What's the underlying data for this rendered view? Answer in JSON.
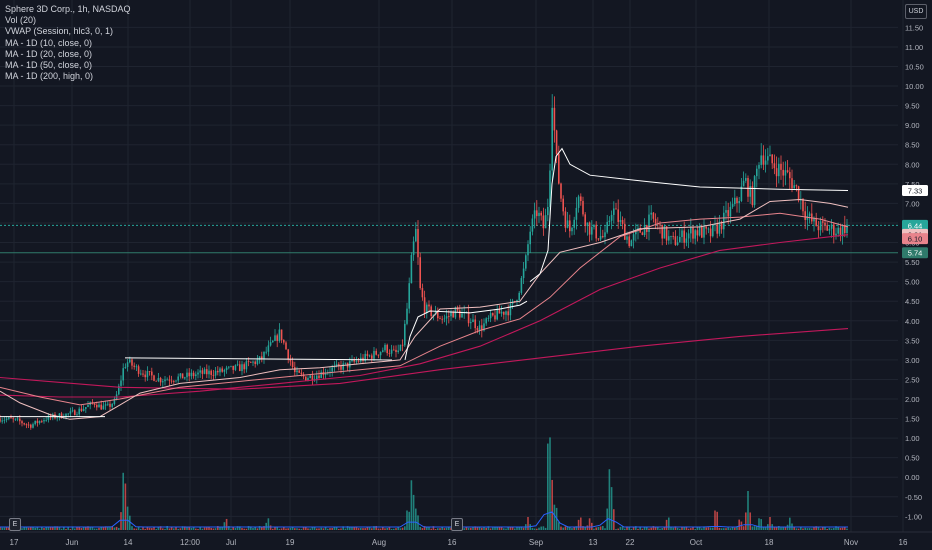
{
  "legend": {
    "symbol": "Sphere 3D Corp., 1h, NASDAQ",
    "vol": "Vol (20)",
    "vwap": "VWAP (Session, hlc3, 0, 1)",
    "ma10": "MA - 1D (10, close, 0)",
    "ma20": "MA - 1D (20, close, 0)",
    "ma50": "MA - 1D (50, close, 0)",
    "ma200": "MA - 1D (200, high, 0)"
  },
  "currency_label": "USD",
  "pane_buttons": [
    "E",
    "E"
  ],
  "colors": {
    "background": "#131722",
    "grid": "#1f2430",
    "up": "#26a69a",
    "down": "#ef5350",
    "vwap": "#ffffff",
    "ma_light": "#f0c0c0",
    "ma_mid": "#e8848c",
    "ma_dark": "#c2185b",
    "volume_up": "#26a69a",
    "volume_down": "#ef5350",
    "volume_ma": "#2962ff",
    "hline": "#2f7a6b"
  },
  "chart_data": {
    "type": "candlestick",
    "title": "Sphere 3D Corp., 1h, NASDAQ",
    "x_ticks": [
      "17",
      "Jun",
      "14",
      "12:00",
      "Jul",
      "19",
      "Aug",
      "16",
      "Sep",
      "13",
      "22",
      "Oct",
      "18",
      "Nov",
      "16"
    ],
    "y_ticks": [
      "-1.00",
      "-0.50",
      "0.00",
      "0.50",
      "1.00",
      "1.50",
      "2.00",
      "2.50",
      "3.00",
      "3.50",
      "4.00",
      "4.50",
      "5.00",
      "5.50",
      "6.00",
      "6.50",
      "7.00",
      "7.50",
      "8.00",
      "8.50",
      "9.00",
      "9.50",
      "10.00",
      "10.50",
      "11.00",
      "11.50"
    ],
    "ylim": [
      -1.4,
      12.2
    ],
    "grid": true,
    "scale_labels": [
      {
        "value": 7.33,
        "text": "7.33",
        "color": "#ffffff",
        "text_color": "#131722"
      },
      {
        "value": 6.44,
        "text": "6.44",
        "color": "#26a69a",
        "text_color": "#ffffff"
      },
      {
        "value": 6.21,
        "text": "6.21",
        "color": "#f0c0c0",
        "text_color": "#131722"
      },
      {
        "value": 6.1,
        "text": "6.10",
        "color": "#e8848c",
        "text_color": "#131722"
      },
      {
        "value": 5.74,
        "text": "5.74",
        "color": "#2f7a6b",
        "text_color": "#ffffff"
      }
    ],
    "horizontal_lines": [
      {
        "name": "last-price-line",
        "value": 6.44,
        "color": "#26a69a"
      },
      {
        "name": "level-line",
        "value": 5.74,
        "color": "#2f7a6b"
      }
    ],
    "price_path": [
      [
        0,
        1.5
      ],
      [
        10,
        1.48
      ],
      [
        20,
        1.42
      ],
      [
        30,
        1.32
      ],
      [
        35,
        1.38
      ],
      [
        45,
        1.5
      ],
      [
        55,
        1.55
      ],
      [
        70,
        1.62
      ],
      [
        80,
        1.72
      ],
      [
        90,
        1.85
      ],
      [
        95,
        1.9
      ],
      [
        100,
        1.8
      ],
      [
        108,
        1.8
      ],
      [
        115,
        1.95
      ],
      [
        120,
        2.4
      ],
      [
        124,
        2.85
      ],
      [
        128,
        2.95
      ],
      [
        135,
        2.8
      ],
      [
        145,
        2.65
      ],
      [
        160,
        2.5
      ],
      [
        180,
        2.55
      ],
      [
        200,
        2.65
      ],
      [
        220,
        2.7
      ],
      [
        240,
        2.8
      ],
      [
        260,
        3.0
      ],
      [
        272,
        3.4
      ],
      [
        280,
        3.7
      ],
      [
        287,
        3.2
      ],
      [
        295,
        2.65
      ],
      [
        305,
        2.55
      ],
      [
        315,
        2.6
      ],
      [
        330,
        2.75
      ],
      [
        345,
        2.85
      ],
      [
        360,
        3.0
      ],
      [
        375,
        3.15
      ],
      [
        385,
        3.3
      ],
      [
        395,
        3.15
      ],
      [
        402,
        3.3
      ],
      [
        408,
        4.5
      ],
      [
        412,
        5.7
      ],
      [
        416,
        6.3
      ],
      [
        420,
        4.8
      ],
      [
        425,
        4.3
      ],
      [
        435,
        4.15
      ],
      [
        445,
        4.05
      ],
      [
        455,
        4.25
      ],
      [
        470,
        4.05
      ],
      [
        480,
        3.8
      ],
      [
        490,
        4.05
      ],
      [
        500,
        4.2
      ],
      [
        510,
        4.3
      ],
      [
        515,
        4.5
      ],
      [
        520,
        4.9
      ],
      [
        525,
        5.4
      ],
      [
        530,
        6.3
      ],
      [
        537,
        6.8
      ],
      [
        544,
        6.35
      ],
      [
        549,
        7.2
      ],
      [
        552,
        9.8
      ],
      [
        556,
        8.2
      ],
      [
        560,
        7.3
      ],
      [
        565,
        6.6
      ],
      [
        570,
        6.3
      ],
      [
        578,
        7.2
      ],
      [
        588,
        6.4
      ],
      [
        598,
        6.2
      ],
      [
        605,
        6.1
      ],
      [
        612,
        6.9
      ],
      [
        620,
        6.5
      ],
      [
        630,
        6.0
      ],
      [
        640,
        6.3
      ],
      [
        652,
        6.6
      ],
      [
        662,
        6.3
      ],
      [
        672,
        6.0
      ],
      [
        682,
        6.15
      ],
      [
        695,
        6.3
      ],
      [
        710,
        6.2
      ],
      [
        720,
        6.45
      ],
      [
        730,
        6.8
      ],
      [
        738,
        7.1
      ],
      [
        745,
        7.6
      ],
      [
        752,
        7.1
      ],
      [
        760,
        8.3
      ],
      [
        768,
        8.1
      ],
      [
        778,
        7.9
      ],
      [
        788,
        7.7
      ],
      [
        798,
        7.3
      ],
      [
        806,
        6.7
      ],
      [
        813,
        6.5
      ],
      [
        820,
        6.4
      ],
      [
        830,
        6.35
      ],
      [
        840,
        6.3
      ],
      [
        848,
        6.44
      ]
    ],
    "vwap_segments": [
      [
        [
          0,
          1.55
        ],
        [
          105,
          1.55
        ]
      ],
      [
        [
          125,
          3.05
        ],
        [
          392,
          3.0
        ]
      ],
      [
        [
          405,
          3.0
        ],
        [
          410,
          3.6
        ],
        [
          418,
          4.1
        ],
        [
          430,
          4.25
        ],
        [
          470,
          4.2
        ],
        [
          500,
          4.3
        ],
        [
          520,
          4.4
        ],
        [
          527,
          4.5
        ]
      ],
      [
        [
          530,
          5.0
        ],
        [
          540,
          5.2
        ],
        [
          548,
          5.8
        ],
        [
          552,
          7.5
        ],
        [
          556,
          8.2
        ],
        [
          562,
          8.4
        ],
        [
          570,
          8.0
        ],
        [
          590,
          7.72
        ],
        [
          650,
          7.55
        ],
        [
          700,
          7.42
        ],
        [
          780,
          7.36
        ],
        [
          848,
          7.33
        ]
      ]
    ],
    "ma_fast": [
      [
        0,
        2.2
      ],
      [
        20,
        1.9
      ],
      [
        50,
        1.6
      ],
      [
        70,
        1.48
      ],
      [
        100,
        1.55
      ],
      [
        120,
        1.85
      ],
      [
        140,
        2.15
      ],
      [
        180,
        2.4
      ],
      [
        240,
        2.55
      ],
      [
        280,
        2.75
      ],
      [
        320,
        2.8
      ],
      [
        360,
        2.9
      ],
      [
        400,
        3.0
      ],
      [
        415,
        3.6
      ],
      [
        440,
        4.3
      ],
      [
        480,
        4.35
      ],
      [
        520,
        4.5
      ],
      [
        540,
        5.2
      ],
      [
        560,
        5.75
      ],
      [
        600,
        6.0
      ],
      [
        640,
        6.35
      ],
      [
        700,
        6.4
      ],
      [
        740,
        6.6
      ],
      [
        770,
        7.05
      ],
      [
        800,
        7.1
      ],
      [
        830,
        7.0
      ],
      [
        848,
        6.9
      ]
    ],
    "ma_mid": [
      [
        0,
        2.3
      ],
      [
        40,
        2.05
      ],
      [
        80,
        1.85
      ],
      [
        120,
        2.0
      ],
      [
        180,
        2.3
      ],
      [
        240,
        2.45
      ],
      [
        300,
        2.6
      ],
      [
        360,
        2.75
      ],
      [
        400,
        2.85
      ],
      [
        440,
        3.35
      ],
      [
        480,
        3.75
      ],
      [
        520,
        4.05
      ],
      [
        550,
        4.6
      ],
      [
        580,
        5.35
      ],
      [
        620,
        6.15
      ],
      [
        660,
        6.5
      ],
      [
        700,
        6.6
      ],
      [
        740,
        6.65
      ],
      [
        780,
        6.75
      ],
      [
        820,
        6.6
      ],
      [
        848,
        6.4
      ]
    ],
    "ma_50": [
      [
        0,
        2.1
      ],
      [
        60,
        2.05
      ],
      [
        120,
        2.05
      ],
      [
        200,
        2.2
      ],
      [
        280,
        2.4
      ],
      [
        360,
        2.6
      ],
      [
        420,
        2.9
      ],
      [
        480,
        3.35
      ],
      [
        540,
        4.0
      ],
      [
        600,
        4.8
      ],
      [
        660,
        5.35
      ],
      [
        720,
        5.8
      ],
      [
        780,
        6.0
      ],
      [
        848,
        6.2
      ]
    ],
    "ma_200": [
      [
        0,
        2.55
      ],
      [
        120,
        2.3
      ],
      [
        240,
        2.25
      ],
      [
        340,
        2.4
      ],
      [
        440,
        2.75
      ],
      [
        540,
        3.05
      ],
      [
        640,
        3.35
      ],
      [
        740,
        3.6
      ],
      [
        848,
        3.8
      ]
    ],
    "volume_spikes": [
      [
        124,
        0.55
      ],
      [
        126,
        0.3
      ],
      [
        128,
        0.2
      ],
      [
        226,
        0.1
      ],
      [
        268,
        0.1
      ],
      [
        408,
        0.2
      ],
      [
        412,
        0.45
      ],
      [
        414,
        0.3
      ],
      [
        417,
        0.15
      ],
      [
        528,
        0.1
      ],
      [
        549,
        0.95
      ],
      [
        551,
        0.55
      ],
      [
        553,
        0.3
      ],
      [
        556,
        0.2
      ],
      [
        580,
        0.12
      ],
      [
        590,
        0.1
      ],
      [
        610,
        0.55
      ],
      [
        613,
        0.2
      ],
      [
        668,
        0.12
      ],
      [
        716,
        0.2
      ],
      [
        740,
        0.1
      ],
      [
        748,
        0.3
      ],
      [
        760,
        0.12
      ],
      [
        770,
        0.1
      ],
      [
        790,
        0.1
      ]
    ]
  }
}
